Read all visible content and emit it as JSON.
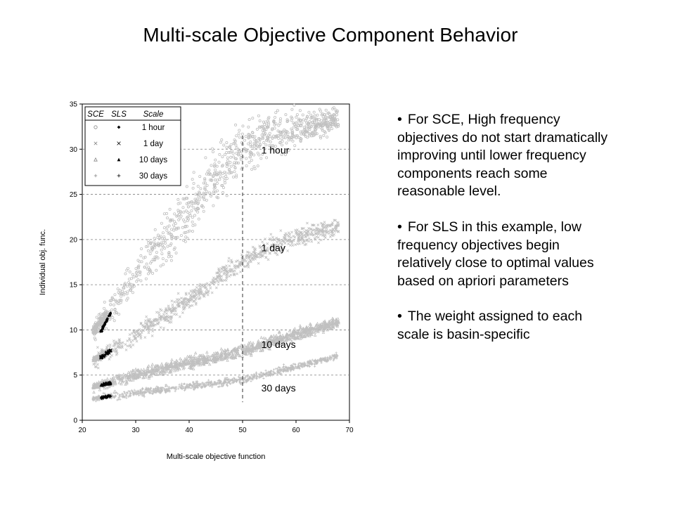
{
  "slide": {
    "title": "Multi-scale Objective Component Behavior"
  },
  "bullets": [
    {
      "text": "For SCE, High frequency objectives do not start dramatically improving until lower frequency components reach some reasonable level."
    },
    {
      "text": "For SLS in this example, low frequency objectives begin relatively close to optimal values based on apriori parameters"
    },
    {
      "text": "The weight assigned to each scale is basin-specific"
    }
  ],
  "chart_data": {
    "type": "scatter",
    "title": "",
    "xlabel": "Multi-scale objective function",
    "ylabel": "Individual obj. func.",
    "xlim": [
      20,
      70
    ],
    "ylim": [
      0,
      35
    ],
    "x_ticks": [
      20,
      30,
      40,
      50,
      60,
      70
    ],
    "y_ticks": [
      0,
      5,
      10,
      15,
      20,
      25,
      30,
      35
    ],
    "grid": "horizontal dashed",
    "legend_position": "top-left",
    "legend_headers": [
      "SCE",
      "SLS",
      "Scale"
    ],
    "reference_line": {
      "x": 50,
      "style": "dashed vertical"
    },
    "colors": {
      "sce": "#c0c0c0",
      "sls": "#000000",
      "grid": "#808080"
    },
    "series": [
      {
        "scale": "1 hour",
        "sce_marker": "circle",
        "sls_marker": "filled-diamond",
        "sce_trend": [
          [
            22,
            9.8
          ],
          [
            25,
            12
          ],
          [
            30,
            16
          ],
          [
            35,
            19.5
          ],
          [
            40,
            23
          ],
          [
            45,
            27
          ],
          [
            50,
            30
          ],
          [
            55,
            31.7
          ],
          [
            60,
            32.5
          ],
          [
            68,
            33.3
          ]
        ],
        "sce_spread": 1.8,
        "sls_points": [
          [
            23.5,
            9.8
          ],
          [
            24,
            10.4
          ],
          [
            24.5,
            11.0
          ],
          [
            25,
            11.5
          ],
          [
            25.3,
            11.9
          ]
        ]
      },
      {
        "scale": "1 day",
        "sce_marker": "x",
        "sls_marker": "x",
        "sce_trend": [
          [
            22,
            6.7
          ],
          [
            25,
            7.5
          ],
          [
            30,
            9.4
          ],
          [
            35,
            11.4
          ],
          [
            40,
            13.4
          ],
          [
            45,
            15.5
          ],
          [
            50,
            17.6
          ],
          [
            55,
            19.1
          ],
          [
            60,
            20.3
          ],
          [
            68,
            21.4
          ]
        ],
        "sce_spread": 0.9,
        "sls_points": [
          [
            23.5,
            6.9
          ],
          [
            24,
            7.1
          ],
          [
            24.5,
            7.4
          ],
          [
            25,
            7.6
          ],
          [
            25.4,
            7.9
          ]
        ]
      },
      {
        "scale": "10 days",
        "sce_marker": "triangle",
        "sls_marker": "filled-triangle",
        "sce_trend": [
          [
            22,
            3.7
          ],
          [
            25,
            4.2
          ],
          [
            30,
            5.0
          ],
          [
            35,
            5.7
          ],
          [
            40,
            6.4
          ],
          [
            45,
            7.0
          ],
          [
            50,
            7.7
          ],
          [
            55,
            8.6
          ],
          [
            60,
            9.5
          ],
          [
            68,
            10.9
          ]
        ],
        "sce_spread": 0.55,
        "sls_points": [
          [
            23.5,
            3.9
          ],
          [
            24,
            4.0
          ],
          [
            24.5,
            4.1
          ],
          [
            25,
            4.1
          ],
          [
            25.4,
            4.2
          ]
        ]
      },
      {
        "scale": "30 days",
        "sce_marker": "plus",
        "sls_marker": "plus",
        "sce_trend": [
          [
            22,
            2.4
          ],
          [
            25,
            2.6
          ],
          [
            30,
            3.0
          ],
          [
            35,
            3.4
          ],
          [
            40,
            3.8
          ],
          [
            45,
            4.1
          ],
          [
            50,
            4.5
          ],
          [
            55,
            5.2
          ],
          [
            60,
            5.9
          ],
          [
            68,
            7.1
          ]
        ],
        "sce_spread": 0.35,
        "sls_points": [
          [
            23.5,
            2.5
          ],
          [
            24,
            2.55
          ],
          [
            24.5,
            2.6
          ],
          [
            25,
            2.65
          ],
          [
            25.4,
            2.7
          ]
        ]
      }
    ],
    "annotations": [
      {
        "text": "1 hour",
        "x": 53.5,
        "y": 29.5
      },
      {
        "text": "1 day",
        "x": 53.5,
        "y": 18.7
      },
      {
        "text": "10 days",
        "x": 53.5,
        "y": 8.0
      },
      {
        "text": "30 days",
        "x": 53.5,
        "y": 3.2
      }
    ]
  }
}
